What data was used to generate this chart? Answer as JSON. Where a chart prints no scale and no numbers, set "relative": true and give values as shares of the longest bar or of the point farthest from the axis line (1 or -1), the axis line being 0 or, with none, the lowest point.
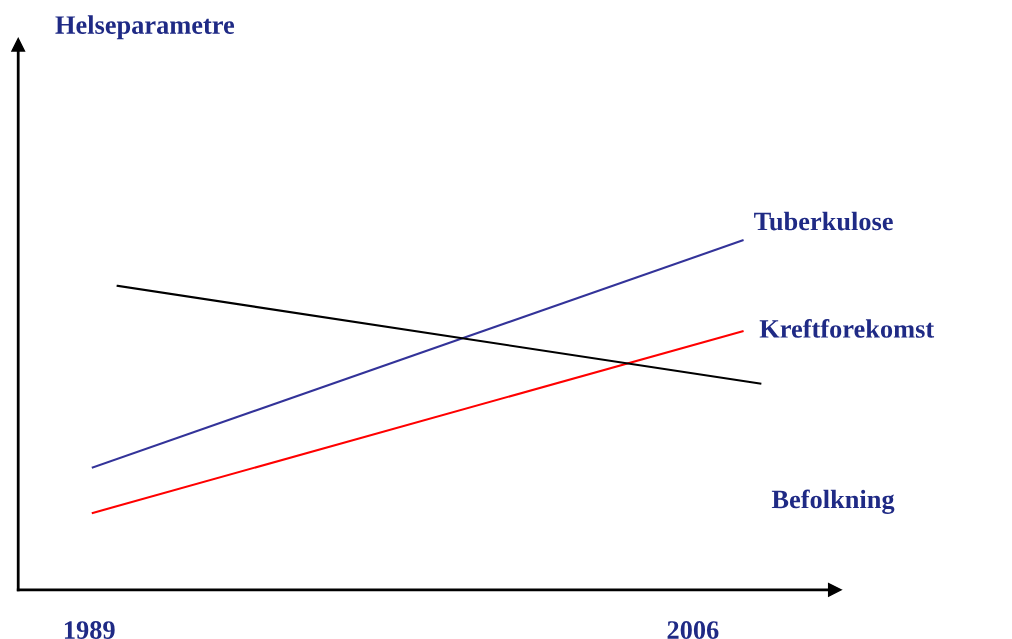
{
  "chart_data": {
    "type": "line",
    "title": "Helseparametre",
    "relative": true,
    "tick_labels": "x",
    "xlim": [
      1987,
      2010
    ],
    "xticks": [
      1989,
      2006
    ],
    "grid": false,
    "legend": false,
    "marker": "none",
    "line_style": "solid",
    "series": [
      {
        "name": "Tuberkulose",
        "color": "#333399",
        "x": [
          1989.1,
          2007.4
        ],
        "values": [
          0.35,
          1.0
        ]
      },
      {
        "name": "Kreftforekomst",
        "color": "#ff0000",
        "x": [
          1989.1,
          2007.4
        ],
        "values": [
          0.22,
          0.74
        ]
      },
      {
        "name": "Befolkning",
        "color": "#000000",
        "x": [
          1989.8,
          2007.9
        ],
        "values": [
          0.87,
          0.59
        ]
      }
    ]
  }
}
